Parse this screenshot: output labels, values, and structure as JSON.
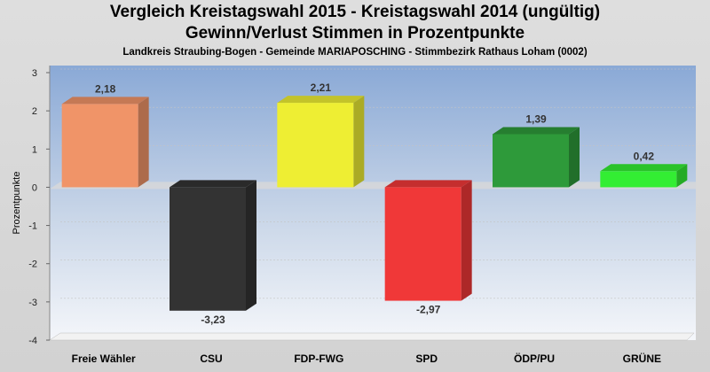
{
  "chart_data": {
    "type": "bar",
    "title": "Vergleich Kreistagswahl 2015 - Kreistagswahl 2014 (ungültig)",
    "subtitle": "Gewinn/Verlust Stimmen in Prozentpunkte",
    "caption": "Landkreis Straubing-Bogen - Gemeinde MARIAPOSCHING - Stimmbezirk Rathaus Loham (0002)",
    "xlabel": "",
    "ylabel": "Prozentpunkte",
    "ylim": [
      -4,
      3
    ],
    "yticks": [
      "-4",
      "-3",
      "-2",
      "-1",
      "0",
      "1",
      "2",
      "3"
    ],
    "grid": true,
    "categories": [
      "Freie Wähler",
      "CSU",
      "FDP-FWG",
      "SPD",
      "ÖDP/PU",
      "GRÜNE"
    ],
    "values": [
      2.18,
      -3.23,
      2.21,
      -2.97,
      1.39,
      0.42
    ],
    "value_labels": [
      "2,18",
      "-3,23",
      "2,21",
      "-2,97",
      "1,39",
      "0,42"
    ],
    "colors": [
      "#f09468",
      "#333333",
      "#eeee33",
      "#f03838",
      "#2e9a3a",
      "#33ee33"
    ]
  }
}
